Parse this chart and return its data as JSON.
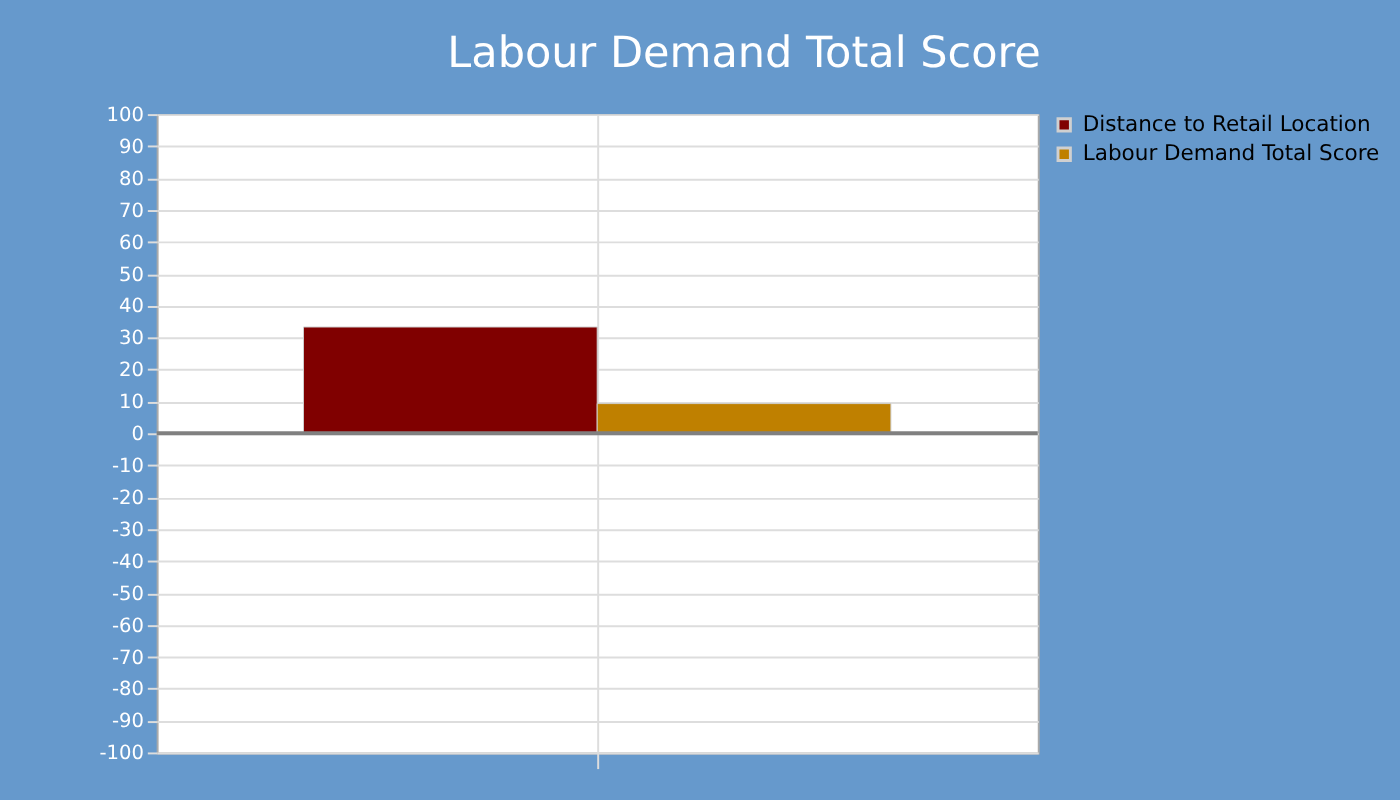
{
  "chart_data": {
    "type": "bar",
    "title": "Labour Demand Total Score",
    "categories": [
      null
    ],
    "series": [
      {
        "name": "Distance to Retail Location",
        "color": "#800000",
        "values": [
          33.3
        ]
      },
      {
        "name": "Labour Demand Total Score",
        "color": "#bf8000",
        "values": [
          9.3
        ]
      }
    ],
    "ylim": [
      -100,
      100
    ],
    "yticks": [
      -100,
      -90,
      -80,
      -70,
      -60,
      -50,
      -40,
      -30,
      -20,
      -10,
      0,
      10,
      20,
      30,
      40,
      50,
      60,
      70,
      80,
      90,
      100
    ],
    "ref_lines": [
      {
        "axis": "y",
        "value": 0,
        "color": "#808080"
      }
    ],
    "grid": true,
    "legend": "top right"
  }
}
